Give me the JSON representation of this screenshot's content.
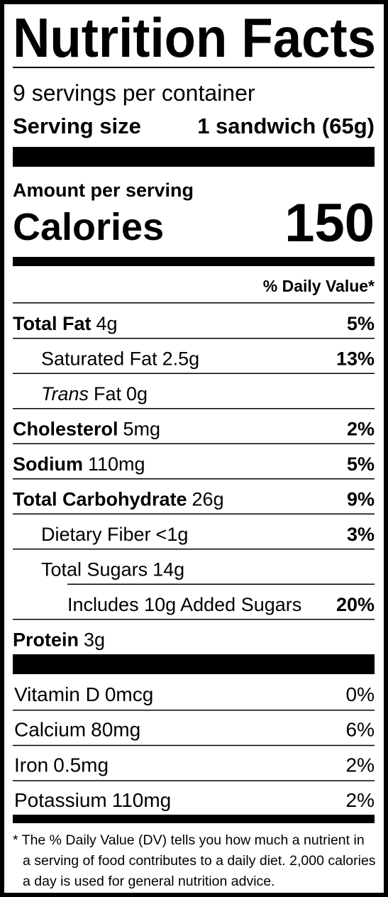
{
  "title": "Nutrition Facts",
  "servings": "9 servings per container",
  "serving_size": {
    "label": "Serving size",
    "value": "1 sandwich (65g)"
  },
  "amount_per_serving": "Amount per serving",
  "calories": {
    "label": "Calories",
    "value": "150"
  },
  "daily_value_header": "% Daily Value*",
  "nutrients": [
    {
      "name": "Total Fat",
      "amount": "4g",
      "dv": "5%",
      "bold": true,
      "indent": 0
    },
    {
      "name": "Saturated Fat",
      "amount": "2.5g",
      "dv": "13%",
      "bold": false,
      "indent": 1
    },
    {
      "name_italic": "Trans",
      "name": "Fat",
      "amount": "0g",
      "bold": false,
      "indent": 1
    },
    {
      "name": "Cholesterol",
      "amount": "5mg",
      "dv": "2%",
      "bold": true,
      "indent": 0
    },
    {
      "name": "Sodium",
      "amount": "110mg",
      "dv": "5%",
      "bold": true,
      "indent": 0
    },
    {
      "name": "Total Carbohydrate",
      "amount": "26g",
      "dv": "9%",
      "bold": true,
      "indent": 0
    },
    {
      "name": "Dietary Fiber",
      "amount": "<1g",
      "dv": "3%",
      "bold": false,
      "indent": 1
    },
    {
      "name": "Total Sugars",
      "amount": "14g",
      "bold": false,
      "indent": 1
    },
    {
      "name": "Includes 10g Added Sugars",
      "dv": "20%",
      "bold": false,
      "indent": 2
    },
    {
      "name": "Protein",
      "amount": "3g",
      "bold": true,
      "indent": 0
    }
  ],
  "vitamins": [
    {
      "name": "Vitamin D",
      "amount": "0mcg",
      "dv": "0%"
    },
    {
      "name": "Calcium",
      "amount": "80mg",
      "dv": "6%"
    },
    {
      "name": "Iron",
      "amount": "0.5mg",
      "dv": "2%"
    },
    {
      "name": "Potassium",
      "amount": "110mg",
      "dv": "2%"
    }
  ],
  "footnote": [
    "* The % Daily Value (DV) tells you how much a nutrient in",
    "a serving of food contributes to a daily diet. 2,000 calories",
    "a day is used for general nutrition advice."
  ]
}
